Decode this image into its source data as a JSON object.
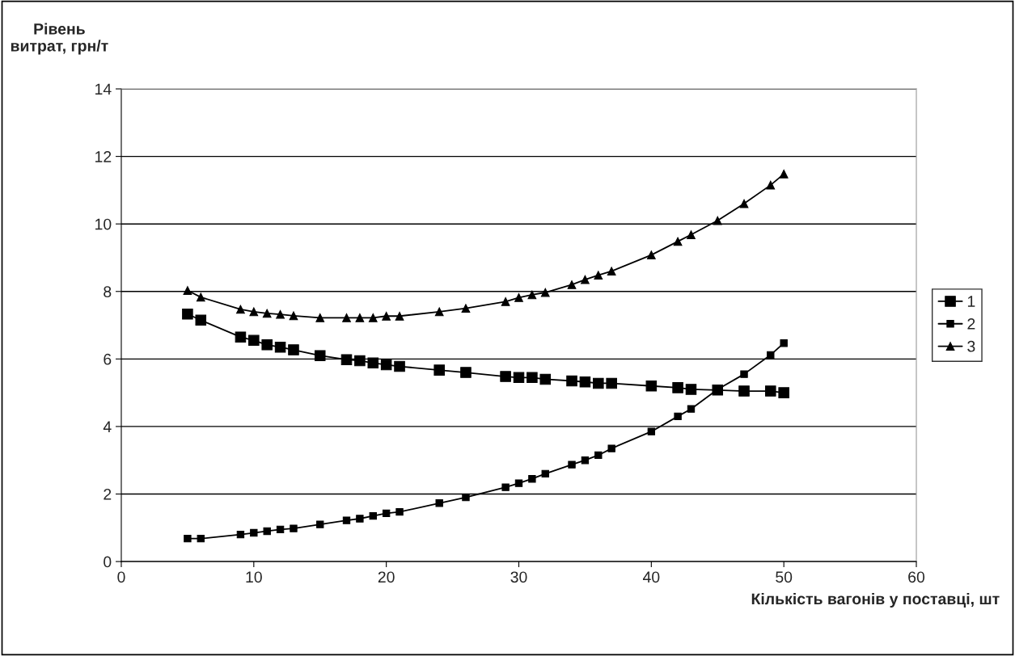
{
  "chart_data": {
    "type": "line",
    "xlabel": "Кількість вагонів у поставці, шт",
    "ylabel": "Рівень\nвитрат, грн/т",
    "x": [
      5,
      6,
      9,
      10,
      11,
      12,
      13,
      15,
      17,
      18,
      19,
      20,
      21,
      24,
      26,
      29,
      30,
      31,
      32,
      34,
      35,
      36,
      37,
      40,
      42,
      43,
      45,
      47,
      49,
      50
    ],
    "series": [
      {
        "name": "1",
        "color": "#000000",
        "marker": "square",
        "values": [
          7.33,
          7.15,
          6.65,
          6.55,
          6.42,
          6.35,
          6.27,
          6.1,
          5.98,
          5.95,
          5.88,
          5.83,
          5.78,
          5.67,
          5.6,
          5.48,
          5.45,
          5.45,
          5.4,
          5.35,
          5.32,
          5.28,
          5.28,
          5.2,
          5.15,
          5.1,
          5.08,
          5.05,
          5.05,
          5.0
        ]
      },
      {
        "name": "2",
        "color": "#000000",
        "marker": "square",
        "values": [
          0.68,
          0.68,
          0.8,
          0.85,
          0.9,
          0.95,
          0.98,
          1.1,
          1.22,
          1.27,
          1.35,
          1.43,
          1.47,
          1.73,
          1.9,
          2.2,
          2.32,
          2.45,
          2.6,
          2.87,
          3.0,
          3.15,
          3.35,
          3.85,
          4.3,
          4.52,
          5.1,
          5.55,
          6.12,
          6.47
        ]
      },
      {
        "name": "3",
        "color": "#000000",
        "marker": "triangle",
        "values": [
          8.03,
          7.83,
          7.47,
          7.4,
          7.35,
          7.32,
          7.28,
          7.22,
          7.22,
          7.22,
          7.22,
          7.27,
          7.27,
          7.4,
          7.5,
          7.7,
          7.82,
          7.9,
          7.97,
          8.2,
          8.35,
          8.48,
          8.6,
          9.08,
          9.48,
          9.68,
          10.1,
          10.6,
          11.15,
          11.48
        ]
      }
    ],
    "xlim": [
      0,
      60
    ],
    "xticks": [
      0,
      10,
      20,
      30,
      40,
      50,
      60
    ],
    "ylim": [
      0,
      14
    ],
    "yticks": [
      0,
      2,
      4,
      6,
      8,
      10,
      12,
      14
    ],
    "grid": "y",
    "legend": "right",
    "line_style": "solid"
  }
}
